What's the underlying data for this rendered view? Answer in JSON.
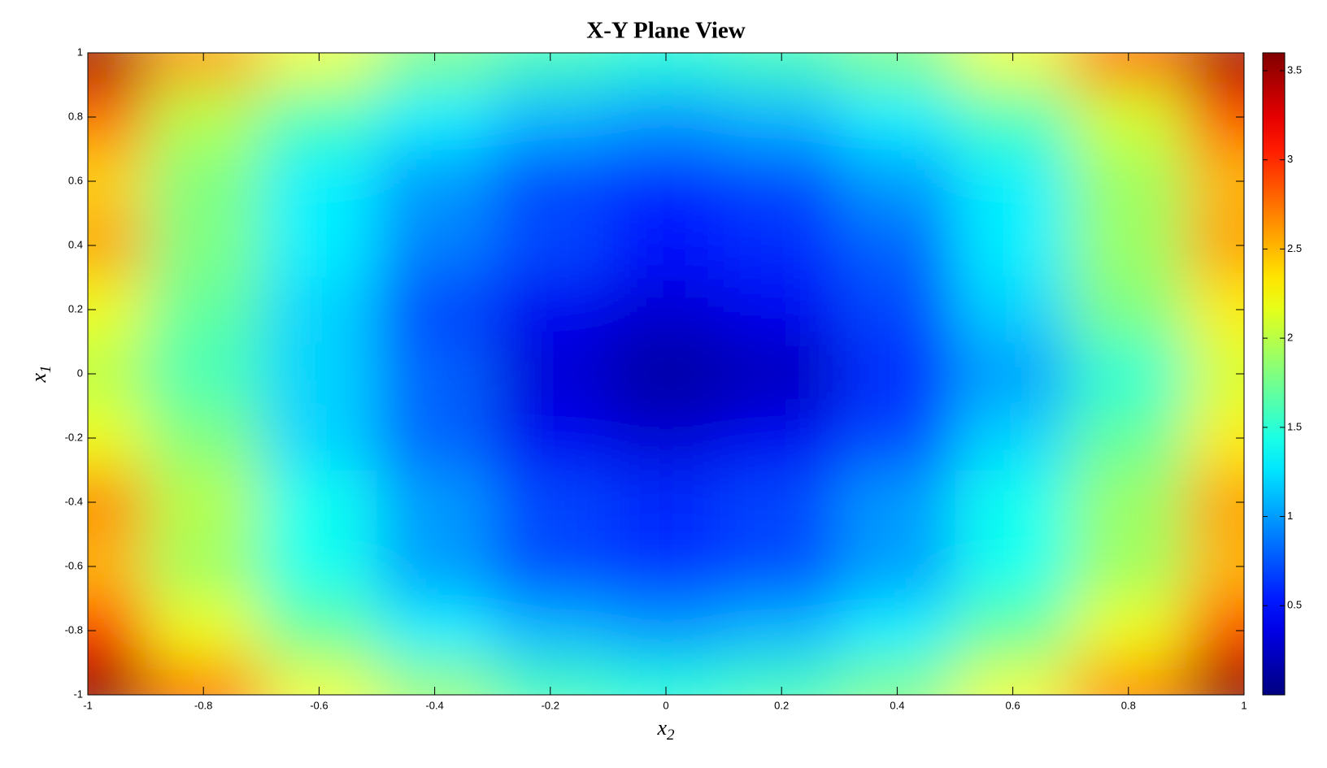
{
  "chart_data": {
    "type": "heatmap",
    "title": "X-Y Plane View",
    "xlabel": {
      "text": "x",
      "subscript": "2"
    },
    "ylabel": {
      "text": "x",
      "subscript": "1"
    },
    "x": [
      -1,
      -0.8,
      -0.6,
      -0.4,
      -0.2,
      0,
      0.2,
      0.4,
      0.6,
      0.8,
      1
    ],
    "y": [
      1,
      0.8,
      0.6,
      0.4,
      0.2,
      0,
      -0.2,
      -0.4,
      -0.6,
      -0.8,
      -1
    ],
    "z": [
      [
        3.5,
        2.6,
        2.2,
        1.8,
        1.6,
        1.5,
        1.6,
        1.8,
        2.2,
        2.8,
        3.5
      ],
      [
        2.8,
        2.0,
        1.6,
        1.3,
        1.1,
        1.0,
        1.1,
        1.3,
        1.6,
        2.1,
        2.9
      ],
      [
        2.4,
        1.8,
        1.3,
        1.0,
        0.7,
        0.6,
        0.7,
        1.0,
        1.3,
        1.9,
        2.5
      ],
      [
        2.6,
        1.8,
        1.3,
        0.9,
        0.7,
        0.5,
        0.6,
        0.8,
        1.3,
        1.9,
        2.6
      ],
      [
        2.2,
        1.7,
        1.2,
        0.7,
        0.4,
        0.3,
        0.4,
        0.7,
        1.2,
        1.8,
        2.3
      ],
      [
        2.0,
        1.6,
        1.2,
        0.8,
        0.3,
        0.1,
        0.2,
        0.6,
        1.0,
        1.5,
        2.1
      ],
      [
        2.2,
        1.8,
        1.2,
        0.8,
        0.4,
        0.3,
        0.4,
        0.7,
        1.2,
        1.7,
        2.3
      ],
      [
        2.7,
        2.0,
        1.4,
        1.0,
        0.7,
        0.6,
        0.7,
        1.0,
        1.4,
        1.9,
        2.6
      ],
      [
        2.5,
        1.9,
        1.4,
        1.0,
        0.7,
        0.6,
        0.7,
        1.0,
        1.4,
        1.9,
        2.5
      ],
      [
        3.0,
        2.2,
        1.7,
        1.3,
        1.1,
        1.0,
        1.1,
        1.3,
        1.7,
        2.2,
        2.9
      ],
      [
        3.6,
        2.8,
        2.2,
        1.9,
        1.6,
        1.5,
        1.6,
        1.8,
        2.2,
        2.7,
        3.6
      ]
    ],
    "xlim": [
      -1,
      1
    ],
    "ylim": [
      -1,
      1
    ],
    "xticks": [
      -1,
      -0.8,
      -0.6,
      -0.4,
      -0.2,
      0,
      0.2,
      0.4,
      0.6,
      0.8,
      1
    ],
    "yticks": [
      -1,
      -0.8,
      -0.6,
      -0.4,
      -0.2,
      0,
      0.2,
      0.4,
      0.6,
      0.8,
      1
    ],
    "colormap": "jet",
    "clim": [
      0,
      3.6
    ],
    "cticks": [
      0.5,
      1,
      1.5,
      2,
      2.5,
      3,
      3.5
    ]
  }
}
